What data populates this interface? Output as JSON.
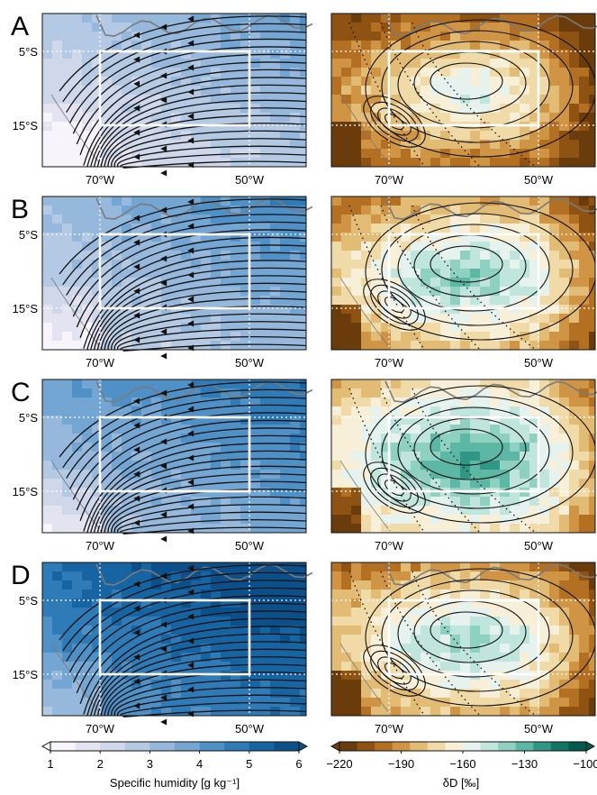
{
  "panels": [
    {
      "letter": "A",
      "q_level": 0.35,
      "d_tone": -0.55
    },
    {
      "letter": "B",
      "q_level": 0.45,
      "d_tone": 0.25
    },
    {
      "letter": "C",
      "q_level": 0.55,
      "d_tone": 0.85
    },
    {
      "letter": "D",
      "q_level": 0.8,
      "d_tone": 0.1
    }
  ],
  "axes": {
    "lat_ticks": [
      "5°S",
      "15°S"
    ],
    "lon_ticks": [
      "70°W",
      "50°W"
    ]
  },
  "colorbars": {
    "humidity": {
      "label": "Specific humidity [g kg⁻¹]",
      "ticks": [
        "1",
        "2",
        "3",
        "4",
        "5",
        "6"
      ],
      "range": [
        1,
        6
      ],
      "colors": [
        "#f7f4fb",
        "#e3e3f1",
        "#cfd7ea",
        "#b4c9e3",
        "#96b8dc",
        "#74a6d4",
        "#4f91c7",
        "#2f7bb8",
        "#1764a3",
        "#0b4f8b"
      ]
    },
    "isotope": {
      "label": "δD [‰]",
      "ticks": [
        "−220",
        "−190",
        "−160",
        "−130",
        "−100"
      ],
      "range": [
        -220,
        -100
      ],
      "colors": [
        "#6a3b0b",
        "#8e5312",
        "#b37022",
        "#cf9444",
        "#e2bb75",
        "#f0dba8",
        "#f7efd8",
        "#e6f2ee",
        "#bfe5dc",
        "#8fd1c1",
        "#5db7a5",
        "#309685",
        "#127565",
        "#015a4d"
      ]
    }
  },
  "colors": {
    "box": "#ffffff",
    "streamline": "#111111",
    "coast": "#7a7a7a"
  }
}
